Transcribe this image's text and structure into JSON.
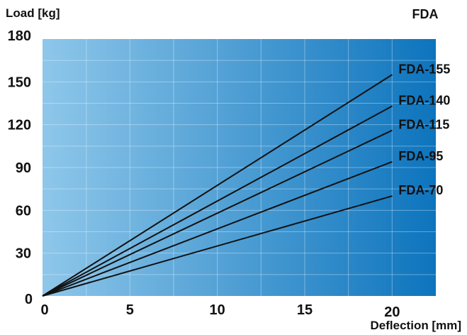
{
  "corner_label": "FDA",
  "chart_data": {
    "type": "line",
    "title": "",
    "xlabel": "Deflection [mm]",
    "ylabel": "Load [kg]",
    "xlim": [
      0,
      22.5
    ],
    "ylim": [
      0,
      180
    ],
    "xticks": [
      "0",
      "5",
      "10",
      "15",
      "20"
    ],
    "yticks": [
      "0",
      "30",
      "60",
      "90",
      "120",
      "150",
      "180"
    ],
    "grid": true,
    "background_gradient": [
      "#8ec7ea",
      "#0d74bd"
    ],
    "series": [
      {
        "name": "FDA-155",
        "x": [
          0,
          20
        ],
        "y": [
          0,
          155
        ]
      },
      {
        "name": "FDA-140",
        "x": [
          0,
          20
        ],
        "y": [
          0,
          133
        ]
      },
      {
        "name": "FDA-115",
        "x": [
          0,
          20
        ],
        "y": [
          0,
          116
        ]
      },
      {
        "name": "FDA-95",
        "x": [
          0,
          20
        ],
        "y": [
          0,
          94
        ]
      },
      {
        "name": "FDA-70",
        "x": [
          0,
          20
        ],
        "y": [
          0,
          70
        ]
      }
    ]
  }
}
